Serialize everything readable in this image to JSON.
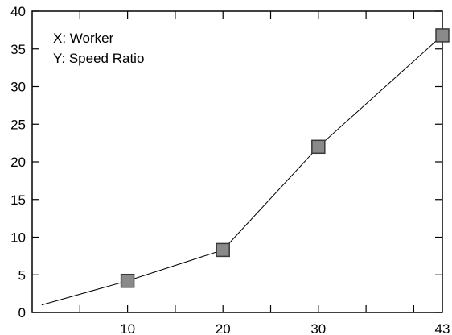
{
  "chart_data": {
    "type": "line",
    "title": "",
    "xlabel": "",
    "ylabel": "",
    "xlim": [
      0,
      43
    ],
    "ylim": [
      0,
      40
    ],
    "x_ticks": [
      10,
      20,
      30,
      43
    ],
    "y_ticks": [
      0,
      5,
      10,
      15,
      20,
      25,
      30,
      35,
      40
    ],
    "grid": false,
    "annotations": [
      "X: Worker",
      "Y: Speed Ratio"
    ],
    "series": [
      {
        "line_x": [
          1,
          10,
          20,
          30,
          43
        ],
        "line_y": [
          1,
          4.2,
          8.3,
          22,
          36.8
        ],
        "marker_x": [
          10,
          20,
          30,
          43
        ],
        "marker_y": [
          4.2,
          8.3,
          22,
          36.8
        ],
        "marker": "square"
      }
    ],
    "colors": {
      "line": "#000000",
      "marker": "#8a8a8a",
      "axes": "#000000"
    }
  }
}
